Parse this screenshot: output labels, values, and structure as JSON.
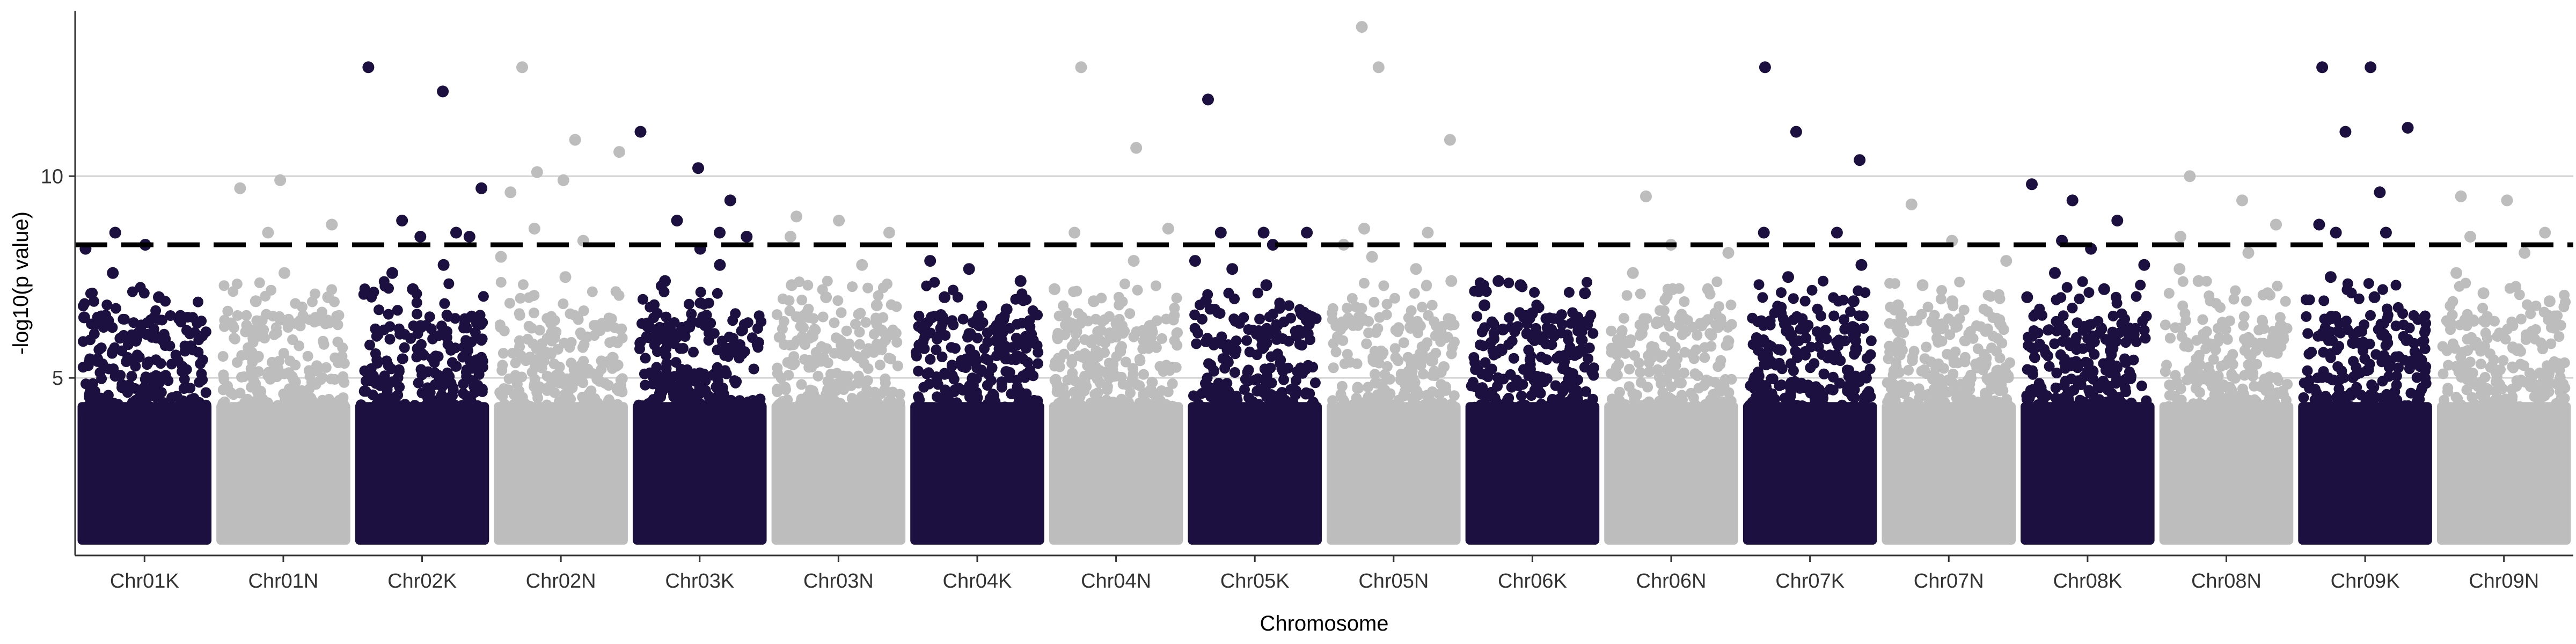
{
  "chart_data": {
    "type": "scatter",
    "subtype": "manhattan",
    "title": "",
    "xlabel": "Chromosome",
    "ylabel": "-log10(p value)",
    "ylim": [
      0.6,
      14.1
    ],
    "yticks": [
      5,
      10
    ],
    "grid": "horizontal-major",
    "threshold": 8.3,
    "colors": {
      "odd": "#1b1040",
      "even": "#bdbdbd",
      "threshold": "#000000",
      "grid": "#d3d3d3"
    },
    "chromosomes": [
      {
        "name": "Chr01K",
        "color": "#1b1040",
        "peaks": [
          8.6,
          8.3,
          8.2,
          7.6,
          7.0,
          6.5,
          6.3,
          6.0
        ]
      },
      {
        "name": "Chr01N",
        "color": "#bdbdbd",
        "peaks": [
          9.7,
          9.9,
          8.8,
          8.6,
          7.6,
          7.0,
          6.9,
          6.4
        ]
      },
      {
        "name": "Chr02K",
        "color": "#1b1040",
        "peaks": [
          12.7,
          12.1,
          9.7,
          8.9,
          8.6,
          8.5,
          8.5,
          7.8,
          7.6,
          7.2
        ]
      },
      {
        "name": "Chr02N",
        "color": "#bdbdbd",
        "peaks": [
          12.7,
          10.9,
          10.6,
          10.1,
          9.9,
          9.6,
          8.7,
          8.4,
          8.0,
          7.5
        ]
      },
      {
        "name": "Chr03K",
        "color": "#1b1040",
        "peaks": [
          11.1,
          10.2,
          9.4,
          8.9,
          8.6,
          8.5,
          8.2,
          7.8,
          7.4
        ]
      },
      {
        "name": "Chr03N",
        "color": "#bdbdbd",
        "peaks": [
          9.0,
          8.9,
          8.6,
          8.5,
          7.8,
          7.3,
          7.0,
          6.8
        ]
      },
      {
        "name": "Chr04K",
        "color": "#1b1040",
        "peaks": [
          7.9,
          7.7,
          7.4,
          7.0,
          6.7,
          6.5,
          6.3
        ]
      },
      {
        "name": "Chr04N",
        "color": "#bdbdbd",
        "peaks": [
          12.7,
          10.7,
          8.7,
          8.6,
          7.9,
          7.2,
          6.9
        ]
      },
      {
        "name": "Chr05K",
        "color": "#1b1040",
        "peaks": [
          11.9,
          8.6,
          8.6,
          8.6,
          8.3,
          7.9,
          7.7,
          7.3,
          6.9
        ]
      },
      {
        "name": "Chr05N",
        "color": "#bdbdbd",
        "peaks": [
          13.7,
          12.7,
          10.9,
          8.7,
          8.6,
          8.3,
          8.0,
          7.7,
          7.4
        ]
      },
      {
        "name": "Chr06K",
        "color": "#1b1040",
        "peaks": [
          7.4,
          7.3,
          7.1,
          6.8,
          6.6,
          6.4,
          6.2
        ]
      },
      {
        "name": "Chr06N",
        "color": "#bdbdbd",
        "peaks": [
          9.5,
          8.3,
          8.1,
          7.6,
          7.2,
          6.6,
          6.1
        ]
      },
      {
        "name": "Chr07K",
        "color": "#1b1040",
        "peaks": [
          12.7,
          11.1,
          10.4,
          8.6,
          8.6,
          7.8,
          7.5,
          6.9
        ]
      },
      {
        "name": "Chr07N",
        "color": "#bdbdbd",
        "peaks": [
          9.3,
          8.4,
          7.9,
          7.3,
          6.9,
          6.8,
          6.4
        ]
      },
      {
        "name": "Chr08K",
        "color": "#1b1040",
        "peaks": [
          9.8,
          9.4,
          8.9,
          8.4,
          8.2,
          7.8,
          7.6,
          7.2,
          7.0
        ]
      },
      {
        "name": "Chr08N",
        "color": "#bdbdbd",
        "peaks": [
          10.0,
          9.4,
          8.8,
          8.5,
          8.1,
          7.7,
          7.4,
          7.1
        ]
      },
      {
        "name": "Chr09K",
        "color": "#1b1040",
        "peaks": [
          12.7,
          12.7,
          11.2,
          11.1,
          9.6,
          8.8,
          8.6,
          8.6,
          7.5,
          7.0
        ]
      },
      {
        "name": "Chr09N",
        "color": "#bdbdbd",
        "peaks": [
          9.5,
          9.4,
          8.6,
          8.5,
          8.1,
          7.6,
          7.1,
          6.9
        ]
      }
    ]
  }
}
